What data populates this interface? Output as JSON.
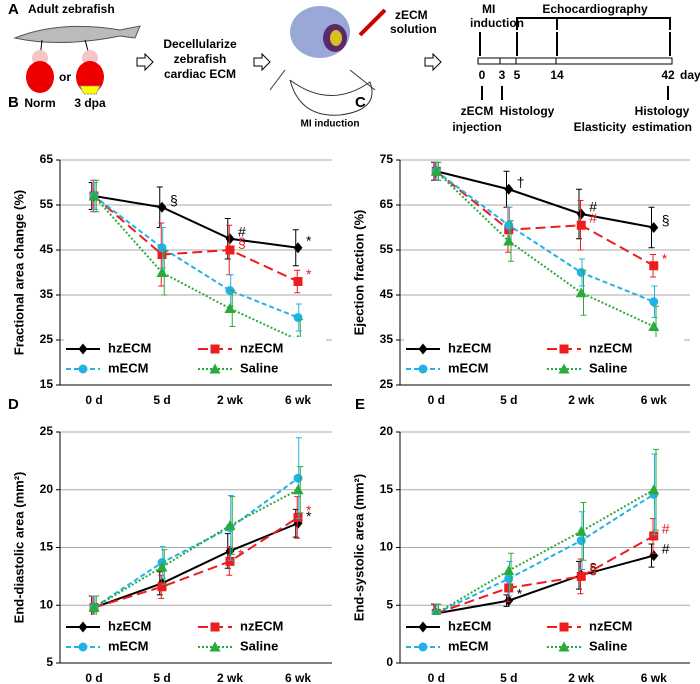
{
  "diagram": {
    "panel": "A",
    "adult": "Adult zebrafish",
    "norm": "Norm",
    "or": "or",
    "dpa": "3 dpa",
    "decellularize": [
      "Decellularize",
      "zebrafish",
      "cardiac ECM"
    ],
    "solution": [
      "zECM",
      "solution"
    ],
    "mi_mouse": "MI induction",
    "timeline": {
      "mi": [
        "MI",
        "induction"
      ],
      "echo": "Echocardiography",
      "ticks": [
        "0",
        "3",
        "5",
        "14",
        "42"
      ],
      "unit": "day",
      "injection": [
        "zECM",
        "injection"
      ],
      "histology": "Histology",
      "elasticity": "Elasticity",
      "estimation": [
        "Histology",
        "estimation"
      ]
    }
  },
  "chart_data": [
    {
      "type": "line",
      "panel": "B",
      "y_label": "Fractional area change (%)",
      "categories": [
        "0 d",
        "5 d",
        "2 wk",
        "6 wk"
      ],
      "ylim": [
        15,
        65
      ],
      "yticks": [
        15,
        25,
        35,
        45,
        55,
        65
      ],
      "grid": true,
      "series": [
        {
          "name": "hzECM",
          "color": "#000000",
          "line_style": "solid",
          "marker": "diamond",
          "values": [
            57,
            54.5,
            47.5,
            45.5
          ],
          "errors": [
            3,
            4.5,
            4.5,
            4
          ],
          "marks": [
            null,
            "§",
            "#",
            "*"
          ]
        },
        {
          "name": "nzECM",
          "color": "#ee1c1c",
          "line_style": "long-dash",
          "marker": "square",
          "values": [
            57,
            44,
            45,
            38
          ],
          "errors": [
            3.5,
            7,
            5.5,
            2.5
          ],
          "marks": [
            null,
            null,
            "§",
            "*"
          ]
        },
        {
          "name": "mECM",
          "color": "#22b2e6",
          "line_style": "dash",
          "marker": "circle",
          "values": [
            57,
            45.5,
            36,
            30
          ],
          "errors": [
            3,
            4.5,
            3.5,
            3
          ],
          "marks": [
            null,
            null,
            null,
            null
          ]
        },
        {
          "name": "Saline",
          "color": "#2aaa3a",
          "line_style": "dot",
          "marker": "triangle",
          "values": [
            57,
            40,
            32,
            25
          ],
          "errors": [
            3.5,
            5,
            4,
            4.5
          ],
          "marks": [
            null,
            null,
            null,
            null
          ]
        }
      ]
    },
    {
      "type": "line",
      "panel": "C",
      "y_label": "Ejection fraction (%)",
      "categories": [
        "0 d",
        "5 d",
        "2 wk",
        "6 wk"
      ],
      "ylim": [
        25,
        75
      ],
      "yticks": [
        25,
        35,
        45,
        55,
        65,
        75
      ],
      "grid": true,
      "series": [
        {
          "name": "hzECM",
          "color": "#000000",
          "line_style": "solid",
          "marker": "diamond",
          "values": [
            72.5,
            68.5,
            63,
            60
          ],
          "errors": [
            2,
            4,
            5.5,
            4.5
          ],
          "marks": [
            null,
            "†",
            "#",
            "§"
          ]
        },
        {
          "name": "nzECM",
          "color": "#ee1c1c",
          "line_style": "long-dash",
          "marker": "square",
          "values": [
            72.5,
            59.5,
            60.5,
            51.5
          ],
          "errors": [
            2,
            5,
            5.5,
            2.5
          ],
          "marks": [
            null,
            null,
            "#",
            "*"
          ]
        },
        {
          "name": "mECM",
          "color": "#22b2e6",
          "line_style": "dash",
          "marker": "circle",
          "values": [
            72.5,
            60.5,
            50,
            43.5
          ],
          "errors": [
            2,
            4,
            3,
            3.5
          ],
          "marks": [
            null,
            null,
            null,
            null
          ]
        },
        {
          "name": "Saline",
          "color": "#2aaa3a",
          "line_style": "dot",
          "marker": "triangle",
          "values": [
            72.5,
            57,
            45.5,
            38
          ],
          "errors": [
            2,
            4.5,
            5,
            4.5
          ],
          "marks": [
            null,
            null,
            null,
            null
          ]
        }
      ]
    },
    {
      "type": "line",
      "panel": "D",
      "y_label": "End-diastolic area (mm²)",
      "categories": [
        "0 d",
        "5 d",
        "2 wk",
        "6 wk"
      ],
      "ylim": [
        5,
        25
      ],
      "yticks": [
        5,
        10,
        15,
        20,
        25
      ],
      "grid": true,
      "series": [
        {
          "name": "hzECM",
          "color": "#000000",
          "line_style": "solid",
          "marker": "diamond",
          "values": [
            9.8,
            11.9,
            14.7,
            17.1
          ],
          "errors": [
            1,
            1,
            1.5,
            1.2
          ],
          "marks": [
            null,
            null,
            null,
            "*"
          ]
        },
        {
          "name": "nzECM",
          "color": "#ee1c1c",
          "line_style": "long-dash",
          "marker": "square",
          "values": [
            9.8,
            11.6,
            13.8,
            17.6
          ],
          "errors": [
            1,
            1,
            1.2,
            1.8
          ],
          "marks": [
            null,
            null,
            "*",
            "*"
          ]
        },
        {
          "name": "mECM",
          "color": "#22b2e6",
          "line_style": "dash",
          "marker": "circle",
          "values": [
            9.8,
            13.7,
            16.7,
            21
          ],
          "errors": [
            1,
            1.4,
            2.8,
            3.5
          ],
          "marks": [
            null,
            null,
            null,
            null
          ]
        },
        {
          "name": "Saline",
          "color": "#2aaa3a",
          "line_style": "dot",
          "marker": "triangle",
          "values": [
            9.8,
            13.3,
            16.9,
            20
          ],
          "errors": [
            1,
            1.5,
            2.5,
            2
          ],
          "marks": [
            null,
            null,
            null,
            null
          ]
        }
      ]
    },
    {
      "type": "line",
      "panel": "E",
      "y_label": "End-systolic area (mm²)",
      "categories": [
        "0 d",
        "5 d",
        "2 wk",
        "6 wk"
      ],
      "ylim": [
        0,
        20
      ],
      "yticks": [
        0,
        5,
        10,
        15,
        20
      ],
      "grid": true,
      "series": [
        {
          "name": "hzECM",
          "color": "#000000",
          "line_style": "solid",
          "marker": "diamond",
          "values": [
            4.3,
            5.4,
            7.6,
            9.3
          ],
          "errors": [
            0.8,
            0.5,
            1.2,
            1
          ],
          "marks": [
            null,
            "*",
            "§",
            "#"
          ]
        },
        {
          "name": "nzECM",
          "color": "#ee1c1c",
          "line_style": "long-dash",
          "marker": "square",
          "values": [
            4.3,
            6.5,
            7.5,
            11
          ],
          "errors": [
            0.8,
            1.2,
            1.5,
            1.5
          ],
          "marks": [
            null,
            null,
            "§",
            "#"
          ]
        },
        {
          "name": "mECM",
          "color": "#22b2e6",
          "line_style": "dash",
          "marker": "circle",
          "values": [
            4.3,
            7.3,
            10.6,
            14.6
          ],
          "errors": [
            0.8,
            1.5,
            2.5,
            3.5
          ],
          "marks": [
            null,
            null,
            null,
            null
          ]
        },
        {
          "name": "Saline",
          "color": "#2aaa3a",
          "line_style": "dot",
          "marker": "triangle",
          "values": [
            4.3,
            8,
            11.4,
            15
          ],
          "errors": [
            0.8,
            1.5,
            2.5,
            3.5
          ],
          "marks": [
            null,
            null,
            null,
            null
          ]
        }
      ]
    }
  ]
}
